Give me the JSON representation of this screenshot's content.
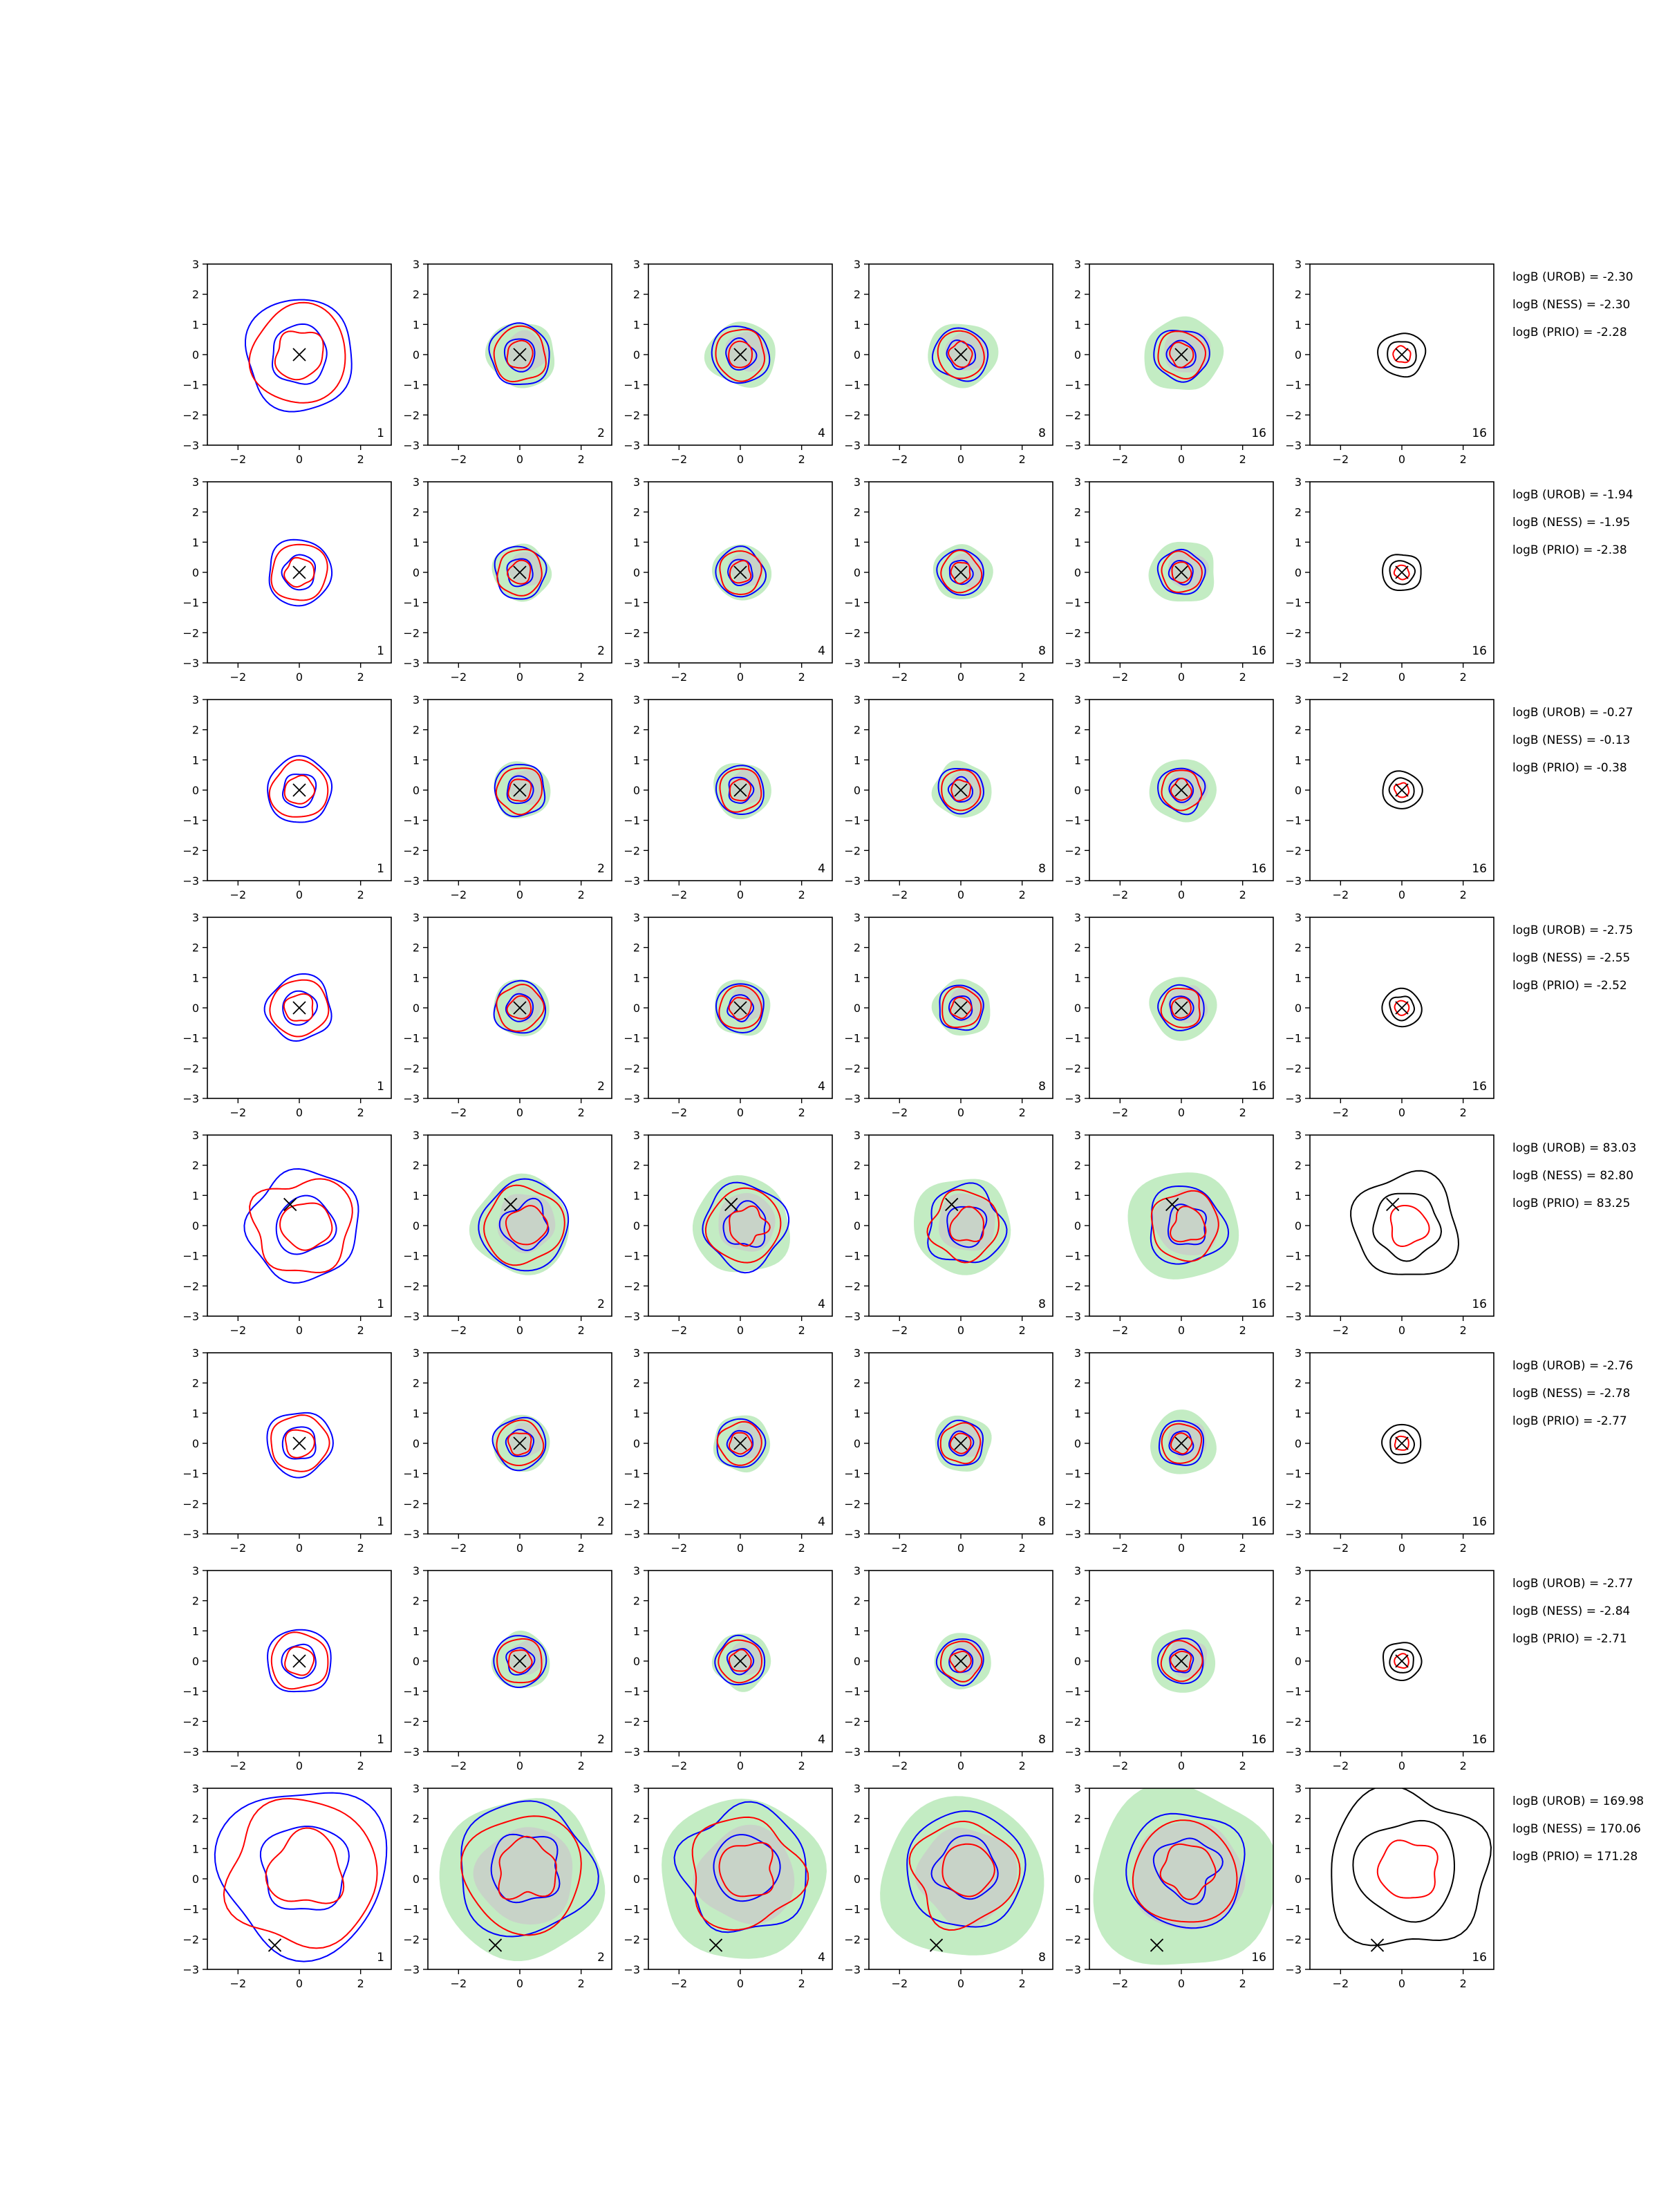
{
  "chart_data": {
    "type": "contour-grid",
    "title": "",
    "rows": 8,
    "columns": 6,
    "xlim": [
      -3,
      3
    ],
    "ylim": [
      -3,
      3
    ],
    "xticks": [
      -2,
      0,
      2
    ],
    "yticks": [
      3,
      2,
      1,
      0,
      -1,
      -2,
      -3
    ],
    "panel_labels": [
      "1",
      "2",
      "4",
      "8",
      "16",
      "16"
    ],
    "series_colors": {
      "contour_a": "#0000ff",
      "contour_b": "#ff0000",
      "contour_prio": "#000000",
      "fill_outer": "#c3ecc3",
      "fill_inner": "#c9cfc9",
      "truth_marker": "#000000"
    },
    "rows_data": [
      {
        "truth": [
          0,
          0
        ],
        "size": 1.0,
        "logB": [
          "logB (UROB) = -2.30",
          "logB (NESS) = -2.30",
          "logB (PRIO) = -2.28"
        ]
      },
      {
        "truth": [
          0,
          0
        ],
        "size": 0.85,
        "logB": [
          "logB (UROB) = -1.94",
          "logB (NESS) = -1.95",
          "logB (PRIO) = -2.38"
        ]
      },
      {
        "truth": [
          0,
          0
        ],
        "size": 0.85,
        "logB": [
          "logB (UROB) = -0.27",
          "logB (NESS) = -0.13",
          "logB (PRIO) = -0.38"
        ]
      },
      {
        "truth": [
          0,
          0
        ],
        "size": 0.85,
        "logB": [
          "logB (UROB) = -2.75",
          "logB (NESS) = -2.55",
          "logB (PRIO) = -2.52"
        ]
      },
      {
        "truth": [
          -0.3,
          0.7
        ],
        "size": 1.45,
        "logB": [
          "logB (UROB) = 83.03",
          "logB (NESS) = 82.80",
          "logB (PRIO) = 83.25"
        ]
      },
      {
        "truth": [
          0,
          0
        ],
        "size": 0.85,
        "logB": [
          "logB (UROB) = -2.76",
          "logB (NESS) = -2.78",
          "logB (PRIO) = -2.77"
        ]
      },
      {
        "truth": [
          0,
          0
        ],
        "size": 0.85,
        "logB": [
          "logB (UROB) = -2.77",
          "logB (NESS) = -2.84",
          "logB (PRIO) = -2.71"
        ]
      },
      {
        "truth": [
          -0.8,
          -2.2
        ],
        "size": 2.2,
        "logB": [
          "logB (UROB) = 169.98",
          "logB (NESS) = 170.06",
          "logB (PRIO) = 171.28"
        ]
      }
    ]
  }
}
